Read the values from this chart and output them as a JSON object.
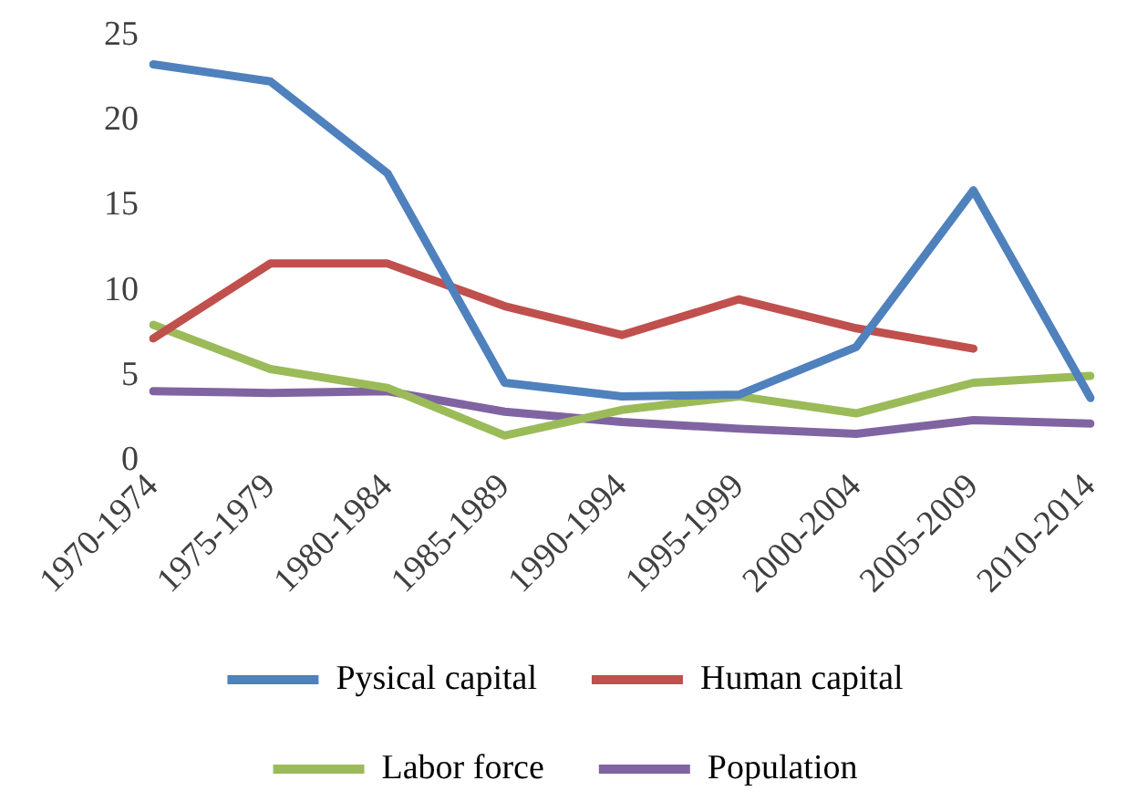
{
  "chart_data": {
    "type": "line",
    "categories": [
      "1970-1974",
      "1975-1979",
      "1980-1984",
      "1985-1989",
      "1990-1994",
      "1995-1999",
      "2000-2004",
      "2005-2009",
      "2010-2014"
    ],
    "series": [
      {
        "name": "Pysical capital",
        "color": "#4f81bd",
        "values": [
          23.3,
          22.3,
          16.9,
          4.6,
          3.8,
          3.9,
          6.7,
          15.9,
          3.7
        ]
      },
      {
        "name": "Human capital",
        "color": "#c0504d",
        "values": [
          7.2,
          11.6,
          11.6,
          9.1,
          7.4,
          9.5,
          7.8,
          6.6,
          null
        ]
      },
      {
        "name": "Labor force",
        "color": "#9bbb59",
        "values": [
          8.0,
          5.4,
          4.3,
          1.5,
          3.0,
          3.8,
          2.8,
          4.6,
          5.0
        ]
      },
      {
        "name": "Population",
        "color": "#8064a2",
        "values": [
          4.1,
          4.0,
          4.1,
          2.9,
          2.3,
          1.9,
          1.6,
          2.4,
          2.2
        ]
      }
    ],
    "ylim": [
      0,
      25
    ],
    "yticks": [
      0,
      5,
      10,
      15,
      20,
      25
    ],
    "grid": false,
    "legend": "bottom",
    "marker": "none"
  }
}
